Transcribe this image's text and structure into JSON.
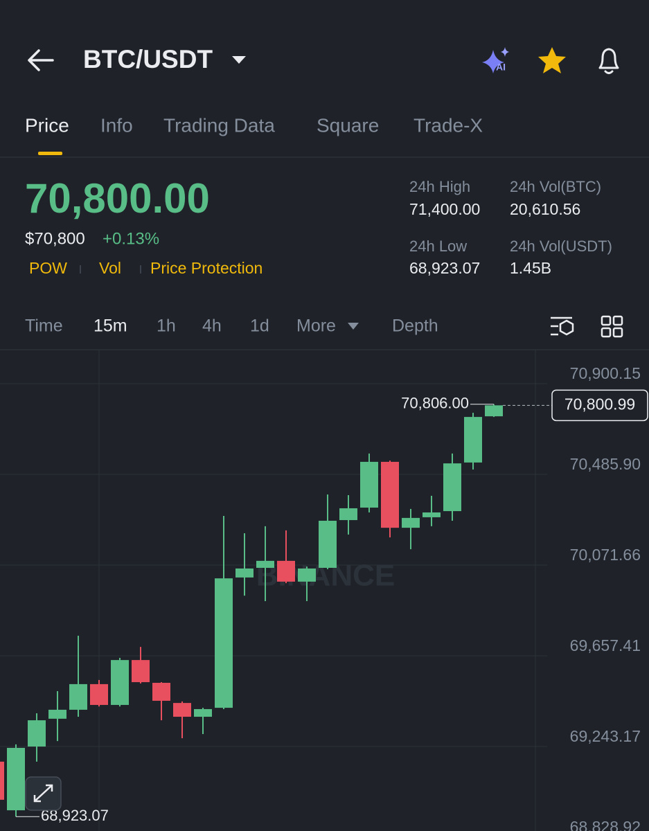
{
  "header": {
    "pair": "BTC/USDT"
  },
  "tabs": [
    "Price",
    "Info",
    "Trading Data",
    "Square",
    "Trade-X"
  ],
  "ticker": {
    "price": "70,800.00",
    "price_usd": "$70,800",
    "change": "+0.13%",
    "tags": [
      "POW",
      "Vol",
      "Price Protection"
    ]
  },
  "stats": [
    {
      "label": "24h High",
      "value": "71,400.00"
    },
    {
      "label": "24h Vol(BTC)",
      "value": "20,610.56"
    },
    {
      "label": "24h Low",
      "value": "68,923.07"
    },
    {
      "label": "24h Vol(USDT)",
      "value": "1.45B"
    }
  ],
  "intervals": [
    "Time",
    "15m",
    "1h",
    "4h",
    "1d",
    "More",
    "Depth"
  ],
  "chart_data": {
    "type": "candlestick",
    "watermark": "BINANCE",
    "categories": [
      null,
      null,
      null,
      null,
      null,
      null,
      null,
      null,
      null,
      null,
      null,
      null,
      null,
      null,
      null,
      null,
      null,
      null,
      null,
      null,
      null,
      null,
      null,
      null,
      null
    ],
    "open": [
      69174,
      68952,
      69243,
      69370,
      69411,
      69528,
      69433,
      69638,
      69534,
      69442,
      69379,
      69420,
      70015,
      70059,
      70091,
      69996,
      70059,
      70277,
      70334,
      70543,
      70242,
      70290,
      70318,
      70540,
      70751
    ],
    "high": [
      69189,
      69253,
      69395,
      69496,
      69749,
      69547,
      69648,
      69698,
      69537,
      69449,
      69420,
      70296,
      70217,
      70249,
      70230,
      70065,
      70394,
      70391,
      70581,
      70549,
      70328,
      70388,
      70581,
      70767,
      70806
    ],
    "low": [
      68968,
      68923.07,
      69174,
      69268,
      69379,
      69426,
      69426,
      69531,
      69363,
      69281,
      69300,
      69414,
      69932,
      69907,
      69989,
      69907,
      70053,
      70211,
      70312,
      70198,
      70144,
      70249,
      70274,
      70508,
      70748
    ],
    "close": [
      69000,
      69237,
      69363,
      69411,
      69528,
      69433,
      69638,
      69537,
      69452,
      69379,
      69414,
      70011,
      70056,
      70091,
      69996,
      70056,
      70274,
      70331,
      70543,
      70242,
      70287,
      70312,
      70536,
      70748,
      70800.99
    ],
    "up_color": "#58bd86",
    "down_color": "#e8505f",
    "ylim": [
      68828.92,
      71055
    ],
    "yticks": [
      {
        "value": 70900.15,
        "label": "70,900.15"
      },
      {
        "value": 70485.9,
        "label": "70,485.90"
      },
      {
        "value": 70071.66,
        "label": "70,071.66"
      },
      {
        "value": 69657.41,
        "label": "69,657.41"
      },
      {
        "value": 69243.17,
        "label": "69,243.17"
      },
      {
        "value": 68828.92,
        "label": "68,828.92"
      }
    ],
    "grid": true,
    "high_marker": {
      "value": 70806,
      "label": "70,806.00"
    },
    "low_marker": {
      "value": 68923.07,
      "label": "68,923.07"
    },
    "last_price": {
      "value": 70800.99,
      "label": "70,800.99"
    }
  }
}
